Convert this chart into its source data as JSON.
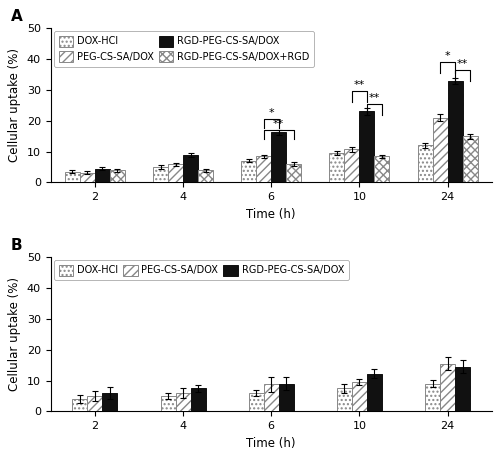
{
  "time_points": [
    2,
    4,
    6,
    10,
    24
  ],
  "panel_A": {
    "label": "A",
    "series": [
      {
        "name": "DOX-HCl",
        "values": [
          3.5,
          5.0,
          7.0,
          9.5,
          12.0
        ],
        "errors": [
          0.5,
          0.6,
          0.5,
          0.7,
          0.8
        ],
        "hatch": "....",
        "facecolor": "#ffffff",
        "edgecolor": "#888888"
      },
      {
        "name": "PEG-CS-SA/DOX",
        "values": [
          3.2,
          5.8,
          8.5,
          10.7,
          21.0
        ],
        "errors": [
          0.5,
          0.6,
          0.5,
          0.8,
          1.2
        ],
        "hatch": "////",
        "facecolor": "#ffffff",
        "edgecolor": "#888888"
      },
      {
        "name": "RGD-PEG-CS-SA/DOX",
        "values": [
          4.5,
          8.8,
          16.2,
          23.0,
          33.0
        ],
        "errors": [
          0.4,
          0.6,
          0.7,
          1.0,
          1.0
        ],
        "hatch": "xxxx",
        "facecolor": "#111111",
        "edgecolor": "#111111"
      },
      {
        "name": "RGD-PEG-CS-SA/DOX+RGD",
        "values": [
          4.0,
          4.0,
          6.0,
          8.5,
          15.0
        ],
        "errors": [
          0.5,
          0.5,
          0.7,
          0.5,
          0.8
        ],
        "hatch": "xxxx",
        "facecolor": "#ffffff",
        "edgecolor": "#888888"
      }
    ],
    "ylim": [
      0,
      50
    ],
    "yticks": [
      0,
      10,
      20,
      30,
      40,
      50
    ],
    "ylabel": "Cellular uptake (%)",
    "xlabel": "Time (h)"
  },
  "panel_B": {
    "label": "B",
    "series": [
      {
        "name": "DOX-HCl",
        "values": [
          4.0,
          5.0,
          6.0,
          7.5,
          9.0
        ],
        "errors": [
          1.2,
          1.0,
          1.0,
          1.5,
          1.2
        ],
        "hatch": "....",
        "facecolor": "#ffffff",
        "edgecolor": "#888888"
      },
      {
        "name": "PEG-CS-SA/DOX",
        "values": [
          5.0,
          6.0,
          8.8,
          9.5,
          15.5
        ],
        "errors": [
          1.5,
          1.5,
          2.5,
          1.0,
          2.0
        ],
        "hatch": "////",
        "facecolor": "#ffffff",
        "edgecolor": "#888888"
      },
      {
        "name": "RGD-PEG-CS-SA/DOX",
        "values": [
          6.0,
          7.5,
          9.0,
          12.2,
          14.5
        ],
        "errors": [
          2.0,
          1.2,
          2.0,
          1.5,
          2.0
        ],
        "hatch": "xxxx",
        "facecolor": "#111111",
        "edgecolor": "#111111"
      }
    ],
    "ylim": [
      0,
      50
    ],
    "yticks": [
      0,
      10,
      20,
      30,
      40,
      50
    ],
    "ylabel": "Cellular uptake (%)",
    "xlabel": "Time (h)"
  },
  "bar_width": 0.17,
  "background_color": "#ffffff",
  "axis_label_fontsize": 8.5,
  "tick_fontsize": 8,
  "legend_fontsize": 7
}
